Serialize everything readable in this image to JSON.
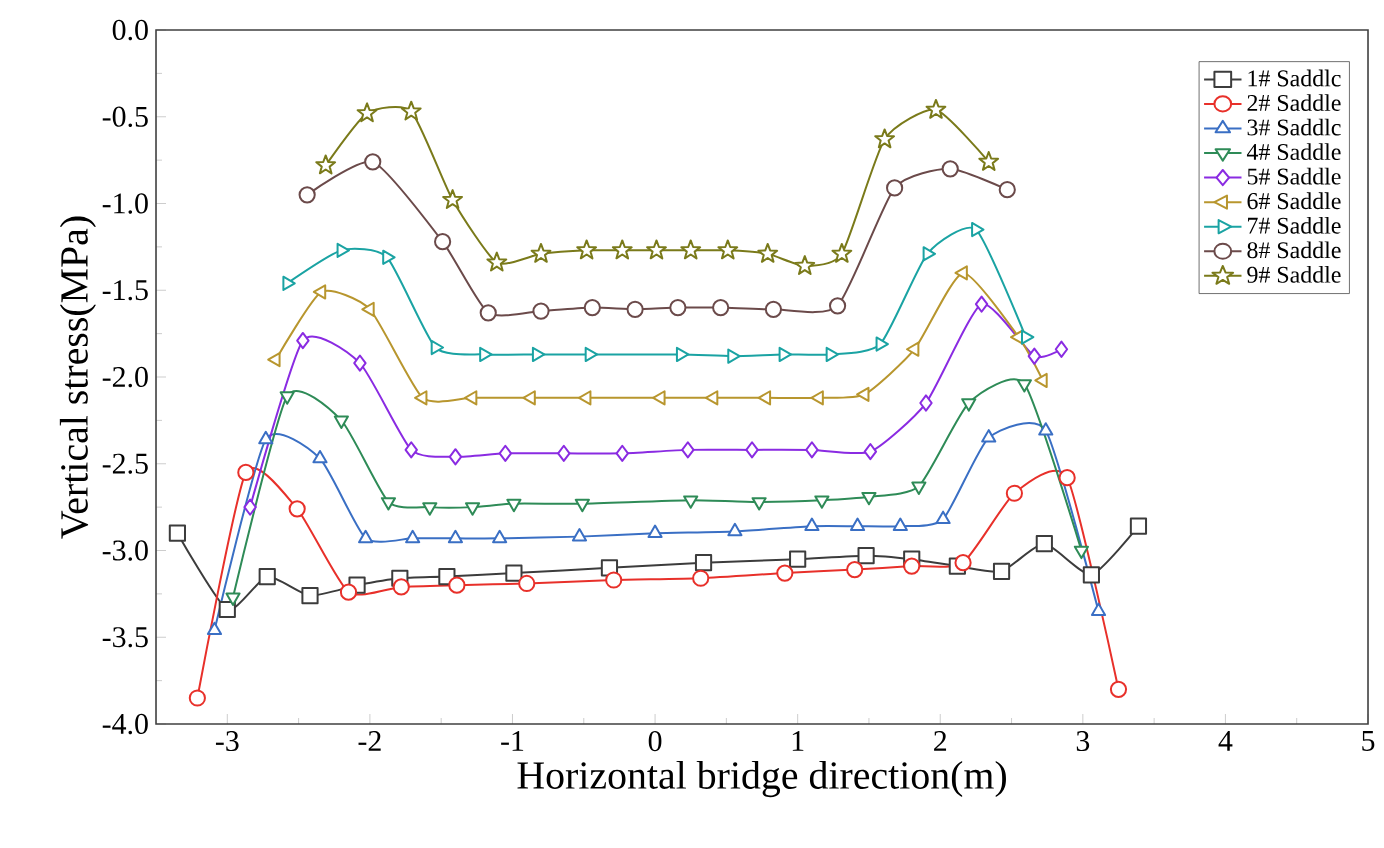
{
  "chart_data": {
    "type": "line",
    "xlabel": "Horizontal bridge direction(m)",
    "ylabel": "Vertical stress(MPa)",
    "xlim": [
      -3.5,
      5
    ],
    "xticks": [
      -3,
      -2,
      -1,
      0,
      1,
      2,
      3,
      4,
      5
    ],
    "ylim": [
      -4.0,
      0.0
    ],
    "yticks": [
      {
        "value": -4.0,
        "label": "-4.0"
      },
      -3.5,
      {
        "value": -3.0,
        "label": "-3.0"
      },
      -2.5,
      {
        "value": -2.0,
        "label": "-2.0"
      },
      -1.5,
      {
        "value": -1.0,
        "label": "-1.0"
      },
      -0.5,
      {
        "value": 0.0,
        "label": "0.0"
      }
    ],
    "legend": "top right",
    "grid": false,
    "series": [
      {
        "name": "1# Saddlc",
        "color": "#3c3c3c",
        "marker": "square",
        "x": [
          -3.35,
          -3.0,
          -2.72,
          -2.42,
          -2.09,
          -1.79,
          -1.46,
          -0.99,
          -0.32,
          0.34,
          1.0,
          1.48,
          1.8,
          2.12,
          2.43,
          2.73,
          3.06,
          3.39
        ],
        "values": [
          -2.9,
          -3.34,
          -3.15,
          -3.26,
          -3.2,
          -3.16,
          -3.15,
          -3.13,
          -3.1,
          -3.07,
          -3.05,
          -3.03,
          -3.05,
          -3.09,
          -3.12,
          -2.96,
          -3.14,
          -2.86
        ]
      },
      {
        "name": "2# Saddle",
        "color": "#e8302a",
        "marker": "circle",
        "x": [
          -3.21,
          -2.87,
          -2.51,
          -2.15,
          -1.78,
          -1.39,
          -0.9,
          -0.29,
          0.32,
          0.91,
          1.4,
          1.8,
          2.16,
          2.52,
          2.89,
          3.25
        ],
        "values": [
          -3.85,
          -2.55,
          -2.76,
          -3.24,
          -3.21,
          -3.2,
          -3.19,
          -3.17,
          -3.16,
          -3.13,
          -3.11,
          -3.09,
          -3.07,
          -2.67,
          -2.58,
          -3.8
        ]
      },
      {
        "name": "3# Saddlc",
        "color": "#3a6fc4",
        "marker": "triangle",
        "x": [
          -3.09,
          -2.73,
          -2.35,
          -2.03,
          -1.7,
          -1.4,
          -1.09,
          -0.53,
          0.0,
          0.56,
          1.1,
          1.42,
          1.72,
          2.02,
          2.34,
          2.74,
          3.11
        ],
        "values": [
          -3.46,
          -2.36,
          -2.47,
          -2.93,
          -2.93,
          -2.93,
          -2.93,
          -2.92,
          -2.9,
          -2.89,
          -2.86,
          -2.86,
          -2.86,
          -2.82,
          -2.35,
          -2.31,
          -3.35
        ]
      },
      {
        "name": "4# Saddle",
        "color": "#2e8b57",
        "marker": "triangle-down",
        "x": [
          -2.96,
          -2.58,
          -2.2,
          -1.87,
          -1.58,
          -1.28,
          -0.99,
          -0.51,
          0.25,
          0.73,
          1.17,
          1.5,
          1.85,
          2.2,
          2.59,
          2.99
        ],
        "values": [
          -3.27,
          -2.11,
          -2.25,
          -2.72,
          -2.75,
          -2.75,
          -2.73,
          -2.73,
          -2.71,
          -2.72,
          -2.71,
          -2.69,
          -2.63,
          -2.15,
          -2.04,
          -3.0
        ]
      },
      {
        "name": "5# Saddle",
        "color": "#8a2be2",
        "marker": "diamond",
        "x": [
          -2.84,
          -2.47,
          -2.07,
          -1.71,
          -1.4,
          -1.05,
          -0.64,
          -0.23,
          0.23,
          0.68,
          1.1,
          1.51,
          1.9,
          2.29,
          2.66,
          2.85
        ],
        "values": [
          -2.75,
          -1.79,
          -1.92,
          -2.42,
          -2.46,
          -2.44,
          -2.44,
          -2.44,
          -2.42,
          -2.42,
          -2.42,
          -2.43,
          -2.15,
          -1.58,
          -1.88,
          -1.84
        ]
      },
      {
        "name": "6# Saddle",
        "color": "#b8962e",
        "marker": "triangle-left",
        "x": [
          -2.66,
          -2.34,
          -2.0,
          -1.63,
          -1.28,
          -0.87,
          -0.48,
          0.04,
          0.41,
          0.78,
          1.15,
          1.47,
          1.82,
          2.16,
          2.55,
          2.72
        ],
        "values": [
          -1.9,
          -1.51,
          -1.61,
          -2.12,
          -2.12,
          -2.12,
          -2.12,
          -2.12,
          -2.12,
          -2.12,
          -2.12,
          -2.1,
          -1.84,
          -1.4,
          -1.77,
          -2.02
        ]
      },
      {
        "name": "7# Saddle",
        "color": "#1aa3a3",
        "marker": "triangle-right",
        "x": [
          -2.58,
          -2.2,
          -1.88,
          -1.54,
          -1.2,
          -0.83,
          -0.46,
          0.18,
          0.54,
          0.9,
          1.23,
          1.58,
          1.91,
          2.25,
          2.6
        ],
        "values": [
          -1.46,
          -1.27,
          -1.31,
          -1.83,
          -1.87,
          -1.87,
          -1.87,
          -1.87,
          -1.88,
          -1.87,
          -1.87,
          -1.81,
          -1.29,
          -1.15,
          -1.77
        ]
      },
      {
        "name": "8# Saddle",
        "color": "#6b4a4a",
        "marker": "circle",
        "x": [
          -2.44,
          -1.98,
          -1.49,
          -1.17,
          -0.8,
          -0.44,
          -0.14,
          0.16,
          0.46,
          0.83,
          1.28,
          1.68,
          2.07,
          2.47
        ],
        "values": [
          -0.95,
          -0.76,
          -1.22,
          -1.63,
          -1.62,
          -1.6,
          -1.61,
          -1.6,
          -1.6,
          -1.61,
          -1.59,
          -0.91,
          -0.8,
          -0.92
        ]
      },
      {
        "name": "9# Saddle",
        "color": "#7a7a1a",
        "marker": "star",
        "x": [
          -2.31,
          -2.02,
          -1.71,
          -1.42,
          -1.11,
          -0.8,
          -0.48,
          -0.23,
          0.01,
          0.25,
          0.51,
          0.79,
          1.05,
          1.31,
          1.61,
          1.97,
          2.34
        ],
        "values": [
          -0.78,
          -0.48,
          -0.47,
          -0.98,
          -1.34,
          -1.29,
          -1.27,
          -1.27,
          -1.27,
          -1.27,
          -1.27,
          -1.29,
          -1.36,
          -1.29,
          -0.63,
          -0.46,
          -0.76
        ]
      }
    ]
  }
}
